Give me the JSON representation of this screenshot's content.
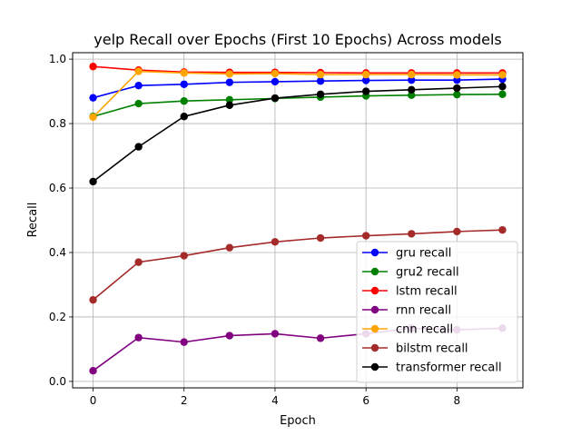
{
  "chart_data": {
    "type": "line",
    "title": "yelp Recall over Epochs (First 10 Epochs) Across models",
    "xlabel": "Epoch",
    "ylabel": "Recall",
    "x": [
      0,
      1,
      2,
      3,
      4,
      5,
      6,
      7,
      8,
      9
    ],
    "xlim": [
      -0.45,
      9.45
    ],
    "ylim": [
      -0.02,
      1.02
    ],
    "xticks": [
      0,
      2,
      4,
      6,
      8
    ],
    "yticks": [
      0.0,
      0.2,
      0.4,
      0.6,
      0.8,
      1.0
    ],
    "grid": true,
    "legend_position": "lower-right",
    "series": [
      {
        "name": "gru recall",
        "color": "#0000ff",
        "values": [
          0.88,
          0.918,
          0.922,
          0.928,
          0.93,
          0.932,
          0.934,
          0.935,
          0.935,
          0.938
        ]
      },
      {
        "name": "gru2 recall",
        "color": "#008000",
        "values": [
          0.822,
          0.862,
          0.87,
          0.874,
          0.878,
          0.882,
          0.886,
          0.888,
          0.89,
          0.891
        ]
      },
      {
        "name": "lstm recall",
        "color": "#ff0000",
        "values": [
          0.977,
          0.966,
          0.96,
          0.959,
          0.959,
          0.958,
          0.957,
          0.957,
          0.957,
          0.957
        ]
      },
      {
        "name": "rnn recall",
        "color": "#800080",
        "values": [
          0.033,
          0.136,
          0.122,
          0.142,
          0.148,
          0.134,
          0.148,
          0.165,
          0.16,
          0.165
        ]
      },
      {
        "name": "cnn recall",
        "color": "#ffa500",
        "values": [
          0.82,
          0.962,
          0.957,
          0.954,
          0.955,
          0.952,
          0.952,
          0.952,
          0.951,
          0.951
        ]
      },
      {
        "name": "bilstm recall",
        "color": "#a52a2a",
        "values": [
          0.253,
          0.37,
          0.39,
          0.415,
          0.433,
          0.445,
          0.452,
          0.458,
          0.465,
          0.47
        ]
      },
      {
        "name": "transformer recall",
        "color": "#000000",
        "values": [
          0.62,
          0.728,
          0.822,
          0.857,
          0.879,
          0.891,
          0.9,
          0.905,
          0.91,
          0.915
        ]
      }
    ]
  }
}
